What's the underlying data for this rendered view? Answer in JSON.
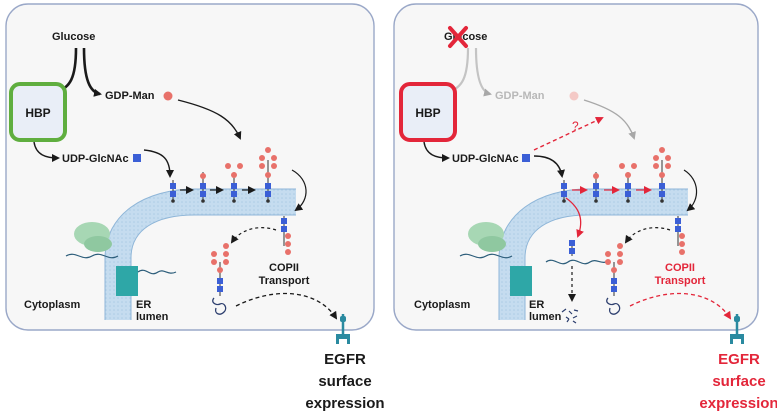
{
  "colors": {
    "panel_border": "#9aa8c8",
    "panel_fill": "#f7f7f7",
    "hbp_normal": "#5fae3f",
    "hbp_disrupted": "#e3263a",
    "hbp_fill": "#e9eef7",
    "membrane": "#c5dcef",
    "glcnac": "#3b5fd6",
    "mannose": "#e8716a",
    "faded": "#c4c4c4",
    "alert_red": "#e3263a",
    "egfr": "#2a8aa0",
    "text": "#1a1a1a"
  },
  "panels": [
    {
      "glucose": "Glucose",
      "gdp_man": "GDP-Man",
      "hbp": "HBP",
      "udp_glcnac": "UDP-GlcNAc",
      "copii": [
        "COPII",
        "Transport"
      ],
      "cytoplasm": "Cytoplasm",
      "er_lumen": [
        "ER",
        "lumen"
      ],
      "egfr": [
        "EGFR",
        "surface",
        "expression"
      ]
    },
    {
      "glucose": "Glucose",
      "gdp_man": "GDP-Man",
      "hbp": "HBP",
      "udp_glcnac": "UDP-GlcNAc",
      "question_mark": "?",
      "copii": [
        "COPII",
        "Transport"
      ],
      "cytoplasm": "Cytoplasm",
      "er_lumen": [
        "ER",
        "lumen"
      ],
      "egfr": [
        "EGFR",
        "surface",
        "expression"
      ],
      "glucose_blocked_icon": "red-cross-icon"
    }
  ]
}
